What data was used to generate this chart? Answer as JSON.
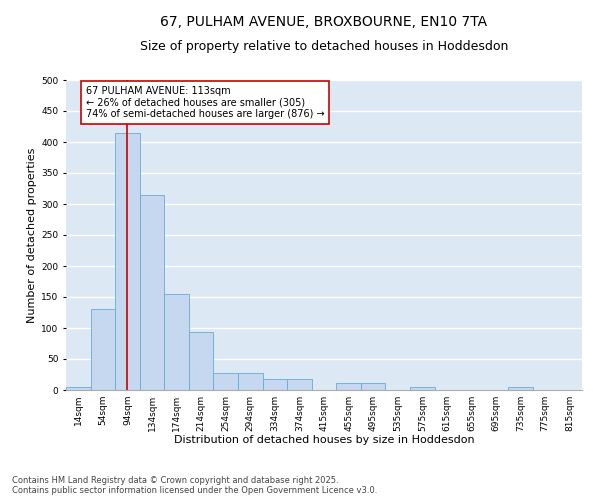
{
  "title_line1": "67, PULHAM AVENUE, BROXBOURNE, EN10 7TA",
  "title_line2": "Size of property relative to detached houses in Hoddesdon",
  "xlabel": "Distribution of detached houses by size in Hoddesdon",
  "ylabel": "Number of detached properties",
  "categories": [
    "14sqm",
    "54sqm",
    "94sqm",
    "134sqm",
    "174sqm",
    "214sqm",
    "254sqm",
    "294sqm",
    "334sqm",
    "374sqm",
    "415sqm",
    "455sqm",
    "495sqm",
    "535sqm",
    "575sqm",
    "615sqm",
    "655sqm",
    "695sqm",
    "735sqm",
    "775sqm",
    "815sqm"
  ],
  "values": [
    5,
    130,
    415,
    315,
    155,
    93,
    28,
    28,
    17,
    17,
    0,
    12,
    12,
    0,
    5,
    0,
    0,
    0,
    5,
    0,
    0
  ],
  "bar_color": "#c5d8ef",
  "bar_edge_color": "#6aaad4",
  "vline_x_index": 2,
  "vline_color": "#cc0000",
  "annotation_text": "67 PULHAM AVENUE: 113sqm\n← 26% of detached houses are smaller (305)\n74% of semi-detached houses are larger (876) →",
  "annotation_box_color": "white",
  "annotation_box_edge": "#cc0000",
  "ylim": [
    0,
    500
  ],
  "yticks": [
    0,
    50,
    100,
    150,
    200,
    250,
    300,
    350,
    400,
    450,
    500
  ],
  "bg_color": "#dde8f5",
  "grid_color": "white",
  "footer_text": "Contains HM Land Registry data © Crown copyright and database right 2025.\nContains public sector information licensed under the Open Government Licence v3.0.",
  "title_fontsize": 10,
  "subtitle_fontsize": 9,
  "axis_label_fontsize": 8,
  "tick_fontsize": 6.5,
  "annotation_fontsize": 7,
  "footer_fontsize": 6
}
